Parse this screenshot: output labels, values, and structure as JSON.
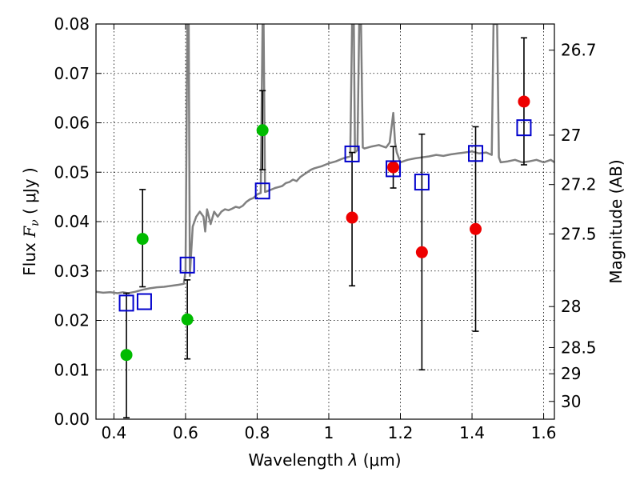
{
  "chart_data": {
    "type": "scatter",
    "xlabel_text": "Wavelength",
    "xlabel_symbol": "λ",
    "xlabel_unit": "(μm)",
    "ylabel_text": "Flux",
    "ylabel_symbol": "F",
    "ylabel_sub": "ν",
    "ylabel_unit": "( μJy )",
    "y2label": "Magnitude (AB)",
    "xlim": [
      0.35,
      1.63
    ],
    "ylim": [
      0.0,
      0.08
    ],
    "x_ticks": [
      0.4,
      0.6,
      0.8,
      1.0,
      1.2,
      1.4,
      1.6
    ],
    "x_tick_labels": [
      "0.4",
      "0.6",
      "0.8",
      "1",
      "1.2",
      "1.4",
      "1.6"
    ],
    "y_ticks": [
      0.0,
      0.01,
      0.02,
      0.03,
      0.04,
      0.05,
      0.06,
      0.07,
      0.08
    ],
    "y_tick_labels": [
      "0.00",
      "0.01",
      "0.02",
      "0.03",
      "0.04",
      "0.05",
      "0.06",
      "0.07",
      "0.08"
    ],
    "mag_ticks": [
      {
        "label": "26.7",
        "flux": 0.0747
      },
      {
        "label": "27",
        "flux": 0.0575
      },
      {
        "label": "27.2",
        "flux": 0.0475
      },
      {
        "label": "27.5",
        "flux": 0.0375
      },
      {
        "label": "28",
        "flux": 0.0228
      },
      {
        "label": "28.5",
        "flux": 0.0145
      },
      {
        "label": "29",
        "flux": 0.0092
      },
      {
        "label": "30",
        "flux": 0.0036
      }
    ],
    "grid": true,
    "colors": {
      "spectrum": "#808080",
      "green": "#00bb00",
      "red": "#ee0000",
      "model": "#0000cc",
      "errorbar": "#000000"
    },
    "spectrum": [
      [
        0.35,
        0.0258
      ],
      [
        0.37,
        0.0256
      ],
      [
        0.39,
        0.0257
      ],
      [
        0.41,
        0.0255
      ],
      [
        0.425,
        0.0257
      ],
      [
        0.44,
        0.0255
      ],
      [
        0.46,
        0.0258
      ],
      [
        0.48,
        0.0262
      ],
      [
        0.5,
        0.0265
      ],
      [
        0.52,
        0.0267
      ],
      [
        0.54,
        0.0268
      ],
      [
        0.56,
        0.027
      ],
      [
        0.58,
        0.0272
      ],
      [
        0.595,
        0.0274
      ],
      [
        0.6,
        0.03
      ],
      [
        0.605,
        0.08
      ],
      [
        0.609,
        0.08
      ],
      [
        0.612,
        0.029
      ],
      [
        0.62,
        0.039
      ],
      [
        0.63,
        0.041
      ],
      [
        0.64,
        0.042
      ],
      [
        0.65,
        0.041
      ],
      [
        0.655,
        0.038
      ],
      [
        0.66,
        0.0425
      ],
      [
        0.67,
        0.0395
      ],
      [
        0.68,
        0.042
      ],
      [
        0.69,
        0.041
      ],
      [
        0.7,
        0.042
      ],
      [
        0.71,
        0.0425
      ],
      [
        0.72,
        0.0423
      ],
      [
        0.73,
        0.0426
      ],
      [
        0.74,
        0.043
      ],
      [
        0.75,
        0.0428
      ],
      [
        0.76,
        0.0432
      ],
      [
        0.77,
        0.044
      ],
      [
        0.78,
        0.0445
      ],
      [
        0.79,
        0.0448
      ],
      [
        0.8,
        0.0455
      ],
      [
        0.81,
        0.0458
      ],
      [
        0.815,
        0.08
      ],
      [
        0.818,
        0.08
      ],
      [
        0.822,
        0.046
      ],
      [
        0.83,
        0.0462
      ],
      [
        0.84,
        0.0465
      ],
      [
        0.85,
        0.0468
      ],
      [
        0.86,
        0.047
      ],
      [
        0.87,
        0.0472
      ],
      [
        0.88,
        0.0478
      ],
      [
        0.89,
        0.048
      ],
      [
        0.9,
        0.0485
      ],
      [
        0.91,
        0.0482
      ],
      [
        0.92,
        0.049
      ],
      [
        0.93,
        0.0495
      ],
      [
        0.94,
        0.05
      ],
      [
        0.95,
        0.0505
      ],
      [
        0.96,
        0.0508
      ],
      [
        0.97,
        0.051
      ],
      [
        0.98,
        0.0512
      ],
      [
        0.99,
        0.0515
      ],
      [
        1.0,
        0.0518
      ],
      [
        1.01,
        0.052
      ],
      [
        1.02,
        0.0522
      ],
      [
        1.03,
        0.0525
      ],
      [
        1.04,
        0.0528
      ],
      [
        1.05,
        0.053
      ],
      [
        1.06,
        0.0532
      ],
      [
        1.065,
        0.08
      ],
      [
        1.07,
        0.08
      ],
      [
        1.073,
        0.054
      ],
      [
        1.08,
        0.0545
      ],
      [
        1.085,
        0.08
      ],
      [
        1.09,
        0.08
      ],
      [
        1.095,
        0.055
      ],
      [
        1.1,
        0.0548
      ],
      [
        1.12,
        0.0552
      ],
      [
        1.14,
        0.0555
      ],
      [
        1.16,
        0.055
      ],
      [
        1.17,
        0.056
      ],
      [
        1.18,
        0.062
      ],
      [
        1.185,
        0.056
      ],
      [
        1.19,
        0.054
      ],
      [
        1.2,
        0.052
      ],
      [
        1.22,
        0.0525
      ],
      [
        1.24,
        0.0528
      ],
      [
        1.26,
        0.053
      ],
      [
        1.28,
        0.0532
      ],
      [
        1.3,
        0.0535
      ],
      [
        1.32,
        0.0533
      ],
      [
        1.34,
        0.0536
      ],
      [
        1.36,
        0.0538
      ],
      [
        1.38,
        0.054
      ],
      [
        1.4,
        0.0542
      ],
      [
        1.42,
        0.0538
      ],
      [
        1.44,
        0.054
      ],
      [
        1.455,
        0.0535
      ],
      [
        1.46,
        0.08
      ],
      [
        1.47,
        0.08
      ],
      [
        1.475,
        0.053
      ],
      [
        1.48,
        0.052
      ],
      [
        1.5,
        0.0522
      ],
      [
        1.52,
        0.0525
      ],
      [
        1.54,
        0.052
      ],
      [
        1.56,
        0.0522
      ],
      [
        1.58,
        0.0525
      ],
      [
        1.6,
        0.052
      ],
      [
        1.62,
        0.0525
      ],
      [
        1.63,
        0.052
      ]
    ],
    "series": [
      {
        "name": "green photometry",
        "color": "green",
        "points": [
          {
            "x": 0.435,
            "y": 0.013,
            "ylo": 0.0003,
            "yhi": 0.0255
          },
          {
            "x": 0.48,
            "y": 0.0365,
            "ylo": 0.0268,
            "yhi": 0.0465
          },
          {
            "x": 0.605,
            "y": 0.0202,
            "ylo": 0.0122,
            "yhi": 0.0282
          },
          {
            "x": 0.815,
            "y": 0.0585,
            "ylo": 0.0505,
            "yhi": 0.0665
          }
        ]
      },
      {
        "name": "red photometry",
        "color": "red",
        "points": [
          {
            "x": 1.065,
            "y": 0.0408,
            "ylo": 0.027,
            "yhi": 0.054
          },
          {
            "x": 1.18,
            "y": 0.051,
            "ylo": 0.0468,
            "yhi": 0.0552
          },
          {
            "x": 1.26,
            "y": 0.0338,
            "ylo": 0.01,
            "yhi": 0.0577
          },
          {
            "x": 1.41,
            "y": 0.0385,
            "ylo": 0.0178,
            "yhi": 0.0592
          },
          {
            "x": 1.545,
            "y": 0.0643,
            "ylo": 0.0515,
            "yhi": 0.0772
          }
        ]
      },
      {
        "name": "model fluxes",
        "color": "model",
        "points": [
          {
            "x": 0.435,
            "y": 0.0235
          },
          {
            "x": 0.485,
            "y": 0.0238
          },
          {
            "x": 0.605,
            "y": 0.0312
          },
          {
            "x": 0.815,
            "y": 0.0462
          },
          {
            "x": 1.065,
            "y": 0.0537
          },
          {
            "x": 1.18,
            "y": 0.0507
          },
          {
            "x": 1.26,
            "y": 0.048
          },
          {
            "x": 1.41,
            "y": 0.0538
          },
          {
            "x": 1.545,
            "y": 0.059
          }
        ]
      }
    ]
  }
}
